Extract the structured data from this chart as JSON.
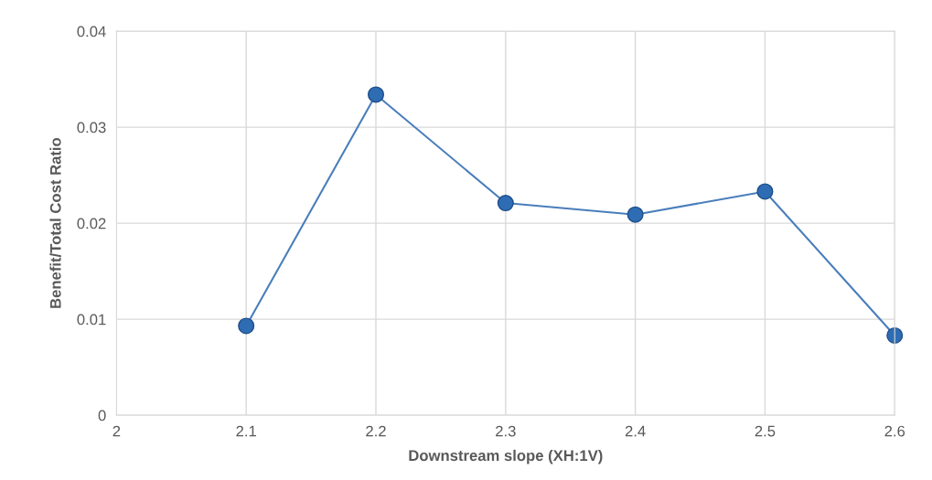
{
  "chart_data": {
    "type": "line",
    "xlabel": "Downstream slope (XH:1V)",
    "ylabel": "Benefit/Total Cost Ratio",
    "x": [
      2.1,
      2.2,
      2.3,
      2.4,
      2.5,
      2.6
    ],
    "series": [
      {
        "color": "#4a7ebb",
        "values": [
          0.0093,
          0.0334,
          0.0221,
          0.0209,
          0.0233,
          0.0083
        ]
      }
    ],
    "xlim": [
      2,
      2.6
    ],
    "xticks": [
      2,
      2.1,
      2.2,
      2.3,
      2.4,
      2.5,
      2.6
    ],
    "ylim": [
      0,
      0.04
    ],
    "yticks": [
      0,
      0.01,
      0.02,
      0.03,
      0.04
    ],
    "grid": true,
    "marker": "circle",
    "line_style": "solid"
  }
}
